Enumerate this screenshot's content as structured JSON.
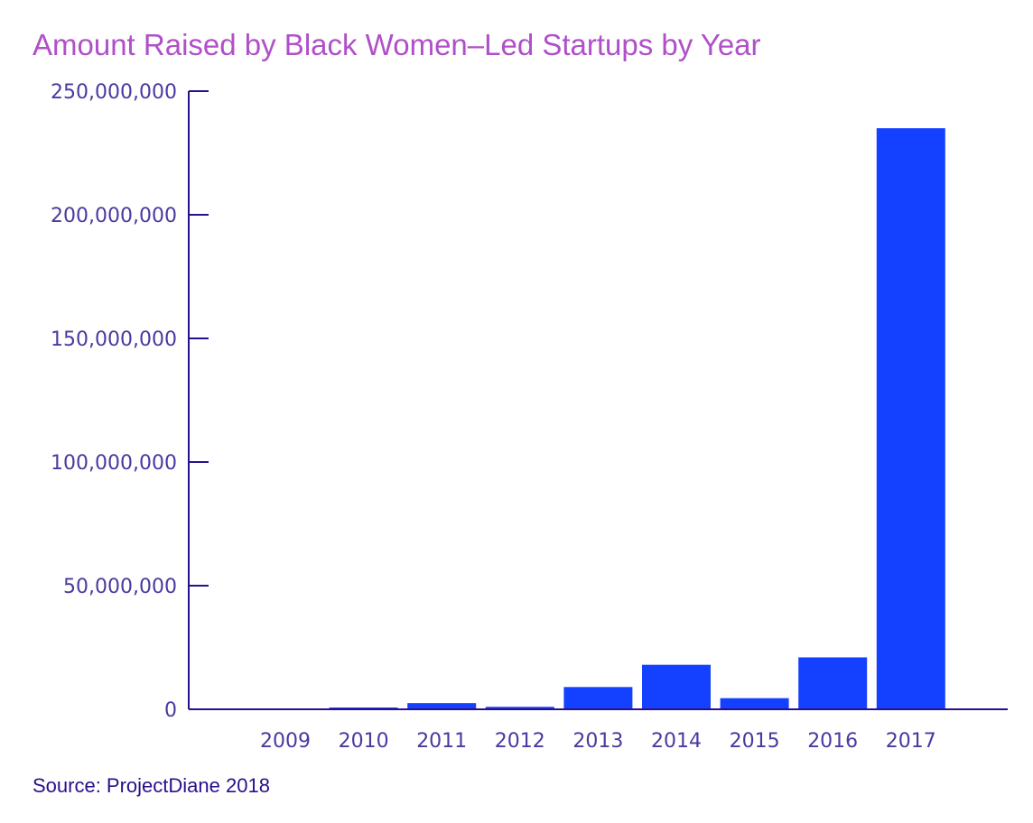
{
  "title": "Amount Raised by Black Women–Led Startups by Year",
  "source": "Source: ProjectDiane 2018",
  "colors": {
    "title": "#b050c8",
    "bar": "#1440ff",
    "axis": "#2a0f8c",
    "tick_label": "#4a3aa0",
    "source": "#2a0f8c"
  },
  "chart_data": {
    "type": "bar",
    "title": "Amount Raised by Black Women–Led Startups by Year",
    "xlabel": "",
    "ylabel": "",
    "categories": [
      "2009",
      "2010",
      "2011",
      "2012",
      "2013",
      "2014",
      "2015",
      "2016",
      "2017"
    ],
    "values": [
      0,
      500000,
      2500000,
      1000000,
      9000000,
      18000000,
      4500000,
      21000000,
      235000000
    ],
    "ylim": [
      0,
      250000000
    ],
    "yticks": [
      0,
      50000000,
      100000000,
      150000000,
      200000000,
      250000000
    ],
    "ytick_labels": [
      "0",
      "50,000,000",
      "100,000,000",
      "150,000,000",
      "200,000,000",
      "250,000,000"
    ],
    "grid": false,
    "legend": "none"
  }
}
